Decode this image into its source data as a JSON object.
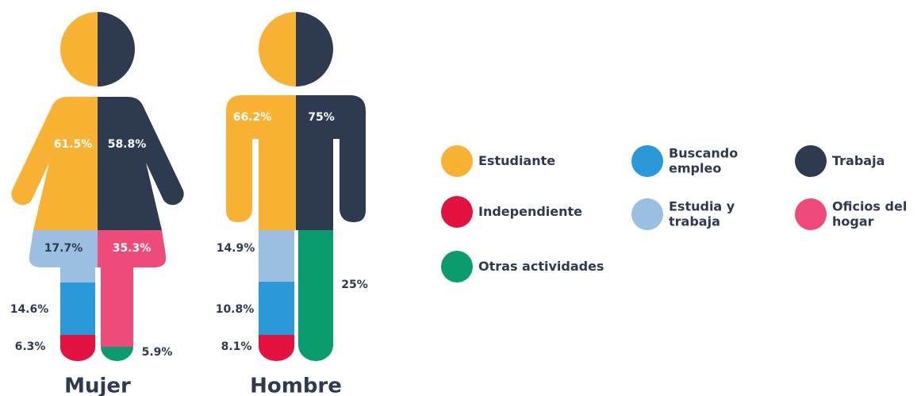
{
  "chart_data": {
    "type": "pictogram",
    "figures": [
      {
        "label": "Mujer",
        "segments": [
          {
            "value": 61.5,
            "value_label": "61.5%",
            "color": "#f9b233"
          },
          {
            "value": 58.8,
            "value_label": "58.8%",
            "color": "#2d3a4f"
          },
          {
            "value": 17.7,
            "value_label": "17.7%",
            "color": "#9bbfe0"
          },
          {
            "value": 35.3,
            "value_label": "35.3%",
            "color": "#ee4b7b"
          },
          {
            "value": 14.6,
            "value_label": "14.6%",
            "color": "#2a99da"
          },
          {
            "value": 6.3,
            "value_label": "6.3%",
            "color": "#e4123f"
          },
          {
            "value": 5.9,
            "value_label": "5.9%",
            "color": "#0a9b6e"
          }
        ]
      },
      {
        "label": "Hombre",
        "segments": [
          {
            "value": 66.2,
            "value_label": "66.2%",
            "color": "#f9b233"
          },
          {
            "value": 75,
            "value_label": "75%",
            "color": "#2d3a4f"
          },
          {
            "value": 14.9,
            "value_label": "14.9%",
            "color": "#9bbfe0"
          },
          {
            "value": 25,
            "value_label": "25%",
            "color": "#0a9b6e"
          },
          {
            "value": 10.8,
            "value_label": "10.8%",
            "color": "#2a99da"
          },
          {
            "value": 8.1,
            "value_label": "8.1%",
            "color": "#e4123f"
          }
        ]
      }
    ],
    "legend": [
      {
        "label": [
          "Estudiante"
        ],
        "color": "#f9b233"
      },
      {
        "label": [
          "Buscando",
          "empleo"
        ],
        "color": "#2a99da"
      },
      {
        "label": [
          "Trabaja"
        ],
        "color": "#2d3a4f"
      },
      {
        "label": [
          "Independiente"
        ],
        "color": "#e4123f"
      },
      {
        "label": [
          "Estudia  y",
          "trabaja"
        ],
        "color": "#9bbfe0"
      },
      {
        "label": [
          "Oficios del",
          "hogar"
        ],
        "color": "#ee4b7b"
      },
      {
        "label": [
          "Otras actividades"
        ],
        "color": "#0a9b6e"
      }
    ]
  }
}
